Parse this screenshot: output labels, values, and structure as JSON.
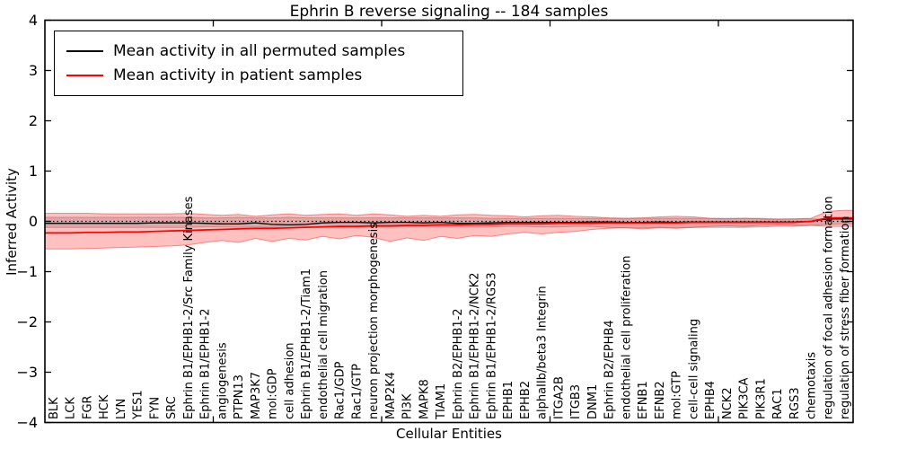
{
  "chart_data": {
    "type": "line",
    "title": "Ephrin B reverse signaling -- 184 samples",
    "xlabel": "Cellular Entities",
    "ylabel": "Inferred Activity",
    "ylim": [
      -4,
      4
    ],
    "yticks": [
      -4,
      -3,
      -2,
      -1,
      0,
      1,
      2,
      3,
      4
    ],
    "x_axis_ticks": [
      10,
      20,
      30,
      40
    ],
    "grid": false,
    "legend_position": "upper left",
    "zero_line": {
      "style": "dotted",
      "color": "#000000",
      "y": 0
    },
    "categories": [
      "BLK",
      "LCK",
      "FGR",
      "HCK",
      "LYN",
      "YES1",
      "FYN",
      "SRC",
      "Ephrin B1/EPHB1-2/Src Family Kinases",
      "Ephrin B1/EPHB1-2",
      "angiogenesis",
      "PTPN13",
      "MAP3K7",
      "mol:GDP",
      "cell adhesion",
      "Ephrin B1/EPHB1-2/Tiam1",
      "endothelial cell migration",
      "Rac1/GDP",
      "Rac1/GTP",
      "neuron projection morphogenesis",
      "MAP2K4",
      "PI3K",
      "MAPK8",
      "TIAM1",
      "Ephrin B2/EPHB1-2",
      "Ephrin B1/EPHB1-2/NCK2",
      "Ephrin B1/EPHB1-2/RGS3",
      "EPHB1",
      "EPHB2",
      "alphaIIb/beta3 Integrin",
      "ITGA2B",
      "ITGB3",
      "DNM1",
      "Ephrin B2/EPHB4",
      "endothelial cell proliferation",
      "EFNB1",
      "EFNB2",
      "mol:GTP",
      "cell-cell signaling",
      "EPHB4",
      "NCK2",
      "PIK3CA",
      "PIK3R1",
      "RAC1",
      "RGS3",
      "chemotaxis",
      "regulation of focal adhesion formation",
      "regulation of stress fiber formation"
    ],
    "series": [
      {
        "name": "Mean activity in all permuted samples",
        "color": "#000000",
        "values": [
          -0.04,
          -0.04,
          -0.04,
          -0.04,
          -0.04,
          -0.04,
          -0.03,
          -0.03,
          -0.03,
          -0.04,
          -0.05,
          -0.05,
          -0.03,
          -0.06,
          -0.07,
          -0.06,
          -0.03,
          -0.02,
          -0.02,
          -0.03,
          -0.02,
          -0.02,
          -0.03,
          -0.02,
          -0.04,
          -0.04,
          -0.03,
          -0.02,
          -0.02,
          -0.02,
          -0.02,
          -0.02,
          -0.01,
          -0.01,
          -0.02,
          -0.02,
          -0.01,
          -0.02,
          -0.01,
          -0.01,
          -0.01,
          -0.01,
          -0.01,
          -0.01,
          -0.01,
          0.0,
          0.05,
          0.05
        ]
      },
      {
        "name": "Mean activity in patient samples",
        "color": "#ff0000",
        "values": [
          -0.23,
          -0.23,
          -0.22,
          -0.22,
          -0.21,
          -0.21,
          -0.2,
          -0.19,
          -0.18,
          -0.17,
          -0.16,
          -0.15,
          -0.14,
          -0.14,
          -0.13,
          -0.12,
          -0.11,
          -0.1,
          -0.1,
          -0.09,
          -0.09,
          -0.08,
          -0.08,
          -0.07,
          -0.07,
          -0.06,
          -0.06,
          -0.05,
          -0.05,
          -0.05,
          -0.04,
          -0.04,
          -0.04,
          -0.03,
          -0.03,
          -0.03,
          -0.03,
          -0.03,
          -0.02,
          -0.02,
          -0.02,
          -0.02,
          -0.02,
          -0.02,
          -0.02,
          0.0,
          0.07,
          0.07
        ]
      }
    ],
    "bands": [
      {
        "name": "permuted samples range",
        "fill": "rgba(130,130,130,0.32)",
        "edge": "rgba(110,110,110,0.45)",
        "upper": [
          0.08,
          0.08,
          0.08,
          0.08,
          0.08,
          0.08,
          0.08,
          0.08,
          0.08,
          0.07,
          0.07,
          0.08,
          0.07,
          0.07,
          0.08,
          0.07,
          0.07,
          0.07,
          0.07,
          0.07,
          0.07,
          0.07,
          0.07,
          0.07,
          0.07,
          0.07,
          0.06,
          0.06,
          0.06,
          0.06,
          0.06,
          0.06,
          0.06,
          0.06,
          0.06,
          0.06,
          0.06,
          0.06,
          0.06,
          0.06,
          0.06,
          0.06,
          0.06,
          0.05,
          0.05,
          0.05,
          0.04,
          0.04
        ],
        "lower": [
          -0.12,
          -0.12,
          -0.12,
          -0.12,
          -0.12,
          -0.12,
          -0.12,
          -0.12,
          -0.12,
          -0.11,
          -0.11,
          -0.12,
          -0.11,
          -0.12,
          -0.12,
          -0.11,
          -0.11,
          -0.11,
          -0.11,
          -0.11,
          -0.11,
          -0.11,
          -0.11,
          -0.11,
          -0.11,
          -0.11,
          -0.11,
          -0.1,
          -0.1,
          -0.11,
          -0.11,
          -0.1,
          -0.1,
          -0.12,
          -0.13,
          -0.13,
          -0.12,
          -0.13,
          -0.12,
          -0.12,
          -0.12,
          -0.12,
          -0.11,
          -0.1,
          -0.1,
          -0.08,
          -0.06,
          -0.05
        ]
      },
      {
        "name": "patient samples range",
        "fill": "rgba(255,45,45,0.30)",
        "edge": "rgba(235,60,60,0.55)",
        "upper": [
          0.16,
          0.16,
          0.16,
          0.15,
          0.15,
          0.15,
          0.15,
          0.15,
          0.16,
          0.14,
          0.12,
          0.14,
          0.1,
          0.13,
          0.15,
          0.12,
          0.14,
          0.15,
          0.12,
          0.15,
          0.13,
          0.1,
          0.12,
          0.1,
          0.13,
          0.14,
          0.12,
          0.11,
          0.09,
          0.11,
          0.12,
          0.1,
          0.09,
          0.07,
          0.06,
          0.07,
          0.09,
          0.1,
          0.09,
          0.06,
          0.05,
          0.06,
          0.05,
          0.04,
          0.05,
          0.06,
          0.2,
          0.22
        ],
        "lower": [
          -0.55,
          -0.55,
          -0.54,
          -0.53,
          -0.52,
          -0.51,
          -0.5,
          -0.49,
          -0.47,
          -0.42,
          -0.38,
          -0.42,
          -0.34,
          -0.4,
          -0.34,
          -0.37,
          -0.3,
          -0.35,
          -0.28,
          -0.32,
          -0.4,
          -0.33,
          -0.38,
          -0.3,
          -0.34,
          -0.28,
          -0.3,
          -0.25,
          -0.22,
          -0.25,
          -0.22,
          -0.2,
          -0.16,
          -0.14,
          -0.13,
          -0.15,
          -0.13,
          -0.14,
          -0.12,
          -0.1,
          -0.09,
          -0.1,
          -0.08,
          -0.07,
          -0.08,
          -0.08,
          -0.1,
          -0.1
        ]
      }
    ]
  }
}
